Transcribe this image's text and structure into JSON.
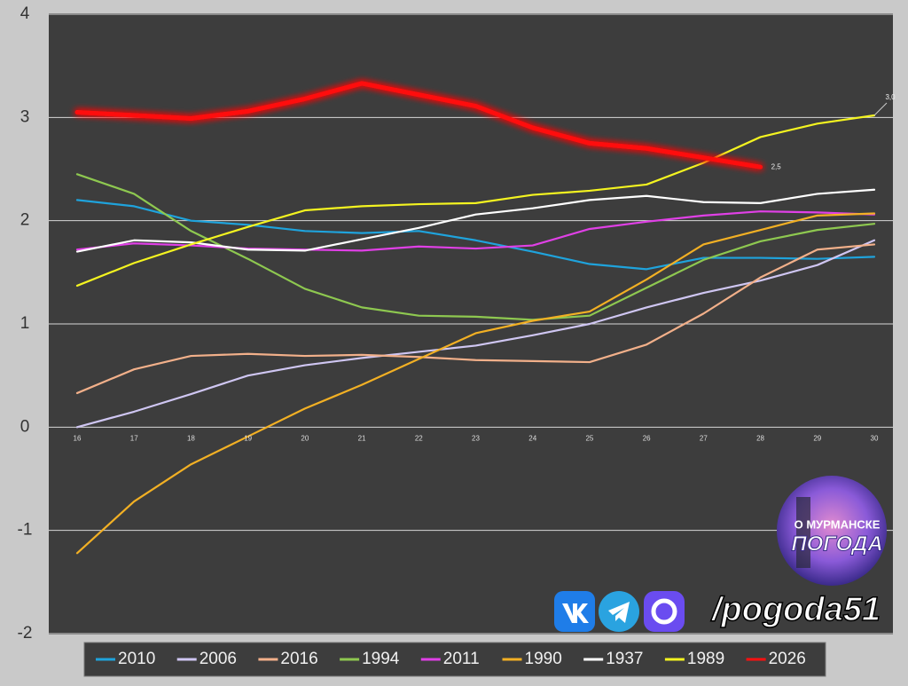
{
  "chart_data": {
    "type": "line",
    "categories": [
      "16",
      "17",
      "18",
      "19",
      "20",
      "21",
      "22",
      "23",
      "24",
      "25",
      "26",
      "27",
      "28",
      "29",
      "30"
    ],
    "ylim": [
      -2,
      4
    ],
    "yticks": [
      -2,
      -1,
      0,
      1,
      2,
      3,
      4
    ],
    "grid": true,
    "legend": "bottom",
    "series": [
      {
        "name": "2010",
        "color": "#1fa3dc",
        "values": [
          2.2,
          2.14,
          2.0,
          1.96,
          1.9,
          1.88,
          1.9,
          1.81,
          1.7,
          1.58,
          1.53,
          1.64,
          1.64,
          1.63,
          1.65
        ]
      },
      {
        "name": "2006",
        "color": "#cfc6f2",
        "values": [
          0.0,
          0.15,
          0.32,
          0.5,
          0.6,
          0.67,
          0.73,
          0.79,
          0.89,
          1.0,
          1.16,
          1.3,
          1.42,
          1.57,
          1.81
        ]
      },
      {
        "name": "2016",
        "color": "#f2b08a",
        "values": [
          0.33,
          0.56,
          0.69,
          0.71,
          0.69,
          0.7,
          0.68,
          0.65,
          0.64,
          0.63,
          0.8,
          1.1,
          1.45,
          1.72,
          1.77
        ]
      },
      {
        "name": "1994",
        "color": "#8ec850",
        "values": [
          2.45,
          2.26,
          1.9,
          1.63,
          1.34,
          1.16,
          1.08,
          1.07,
          1.04,
          1.08,
          1.35,
          1.62,
          1.8,
          1.91,
          1.97
        ]
      },
      {
        "name": "2011",
        "color": "#e040e6",
        "values": [
          1.72,
          1.78,
          1.76,
          1.73,
          1.72,
          1.71,
          1.75,
          1.73,
          1.76,
          1.92,
          1.99,
          2.05,
          2.09,
          2.08,
          2.06
        ]
      },
      {
        "name": "1990",
        "color": "#f2b024",
        "values": [
          -1.22,
          -0.72,
          -0.36,
          -0.09,
          0.18,
          0.41,
          0.66,
          0.91,
          1.03,
          1.12,
          1.43,
          1.77,
          1.91,
          2.05,
          2.07
        ]
      },
      {
        "name": "1937",
        "color": "#ffffff",
        "values": [
          1.7,
          1.81,
          1.79,
          1.72,
          1.71,
          1.82,
          1.93,
          2.06,
          2.12,
          2.2,
          2.24,
          2.18,
          2.17,
          2.26,
          2.3
        ]
      },
      {
        "name": "1989",
        "color": "#f4f420",
        "values": [
          1.37,
          1.59,
          1.77,
          1.94,
          2.1,
          2.14,
          2.16,
          2.17,
          2.25,
          2.29,
          2.35,
          2.56,
          2.81,
          2.94,
          3.02
        ],
        "value_labels": [
          null,
          null,
          null,
          null,
          null,
          null,
          null,
          null,
          null,
          null,
          null,
          null,
          null,
          null,
          "3,0"
        ]
      },
      {
        "name": "2026",
        "color": "#ff1010",
        "glow": true,
        "values": [
          3.05,
          3.02,
          2.99,
          3.06,
          3.18,
          3.33,
          3.22,
          3.11,
          2.9,
          2.75,
          2.7,
          2.61,
          2.52,
          null,
          null
        ],
        "value_labels": [
          null,
          null,
          null,
          null,
          null,
          null,
          null,
          null,
          null,
          null,
          null,
          null,
          "2,5",
          null,
          null
        ]
      }
    ]
  },
  "watermark": {
    "logo_top": "О МУРМАНСКЕ",
    "logo_main": "ПОГОДА",
    "handle": "/pogoda51"
  }
}
